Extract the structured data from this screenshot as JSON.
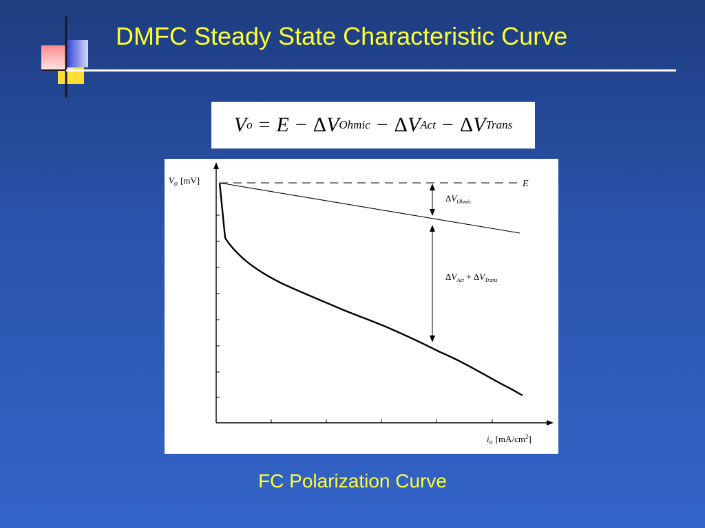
{
  "slide": {
    "title": "DMFC Steady State Characteristic Curve",
    "caption": "FC Polarization Curve",
    "colors": {
      "title": "#ffff33",
      "background": "#2a54ad",
      "rule": "#ffffff"
    }
  },
  "equation": {
    "lhs": "V",
    "lhs_sub": "o",
    "eq": "=",
    "E": "E",
    "minus": "−",
    "delta": "Δ",
    "v": "V",
    "term1_sub": "Ohmic",
    "term2_sub": "Act",
    "term3_sub": "Trans"
  },
  "plot": {
    "ylabel_var": "V",
    "ylabel_sub": "o",
    "ylabel_unit": "[mV]",
    "xlabel_var": "i",
    "xlabel_sub": "o",
    "xlabel_unit": "[mA/cm",
    "xlabel_unit_sup": "2",
    "xlabel_unit_close": "]",
    "E_label": "E",
    "ohmic_label_delta": "Δ",
    "ohmic_label_v": "V",
    "ohmic_label_sub": "Ohmic",
    "act_trans_label_delta1": "Δ",
    "act_trans_label_v1": "V",
    "act_trans_label_sub1": "Act",
    "act_trans_plus": " + ",
    "act_trans_label_delta2": "Δ",
    "act_trans_label_v2": "V",
    "act_trans_label_sub2": "Trans"
  }
}
